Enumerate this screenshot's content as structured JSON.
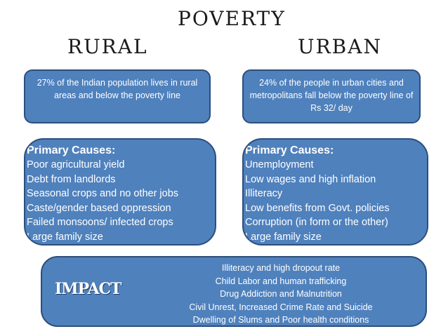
{
  "title": "Poverty",
  "columns": {
    "rural": {
      "heading": "Rural",
      "stat": "27% of the Indian population lives in rural areas and below the poverty line",
      "causes_title": "Primary Causes:",
      "causes": [
        "Poor agricultural yield",
        "Debt from landlords",
        "Seasonal crops and no other jobs",
        "Caste/gender based oppression",
        "Failed monsoons/ infected crops",
        "Large family size"
      ]
    },
    "urban": {
      "heading": "Urban",
      "stat": "24% of the people in urban cities and metropolitans fall below the poverty line of Rs 32/ day",
      "causes_title": "Primary Causes:",
      "causes": [
        "Unemployment",
        "Low wages and high inflation",
        "Illiteracy",
        "Low benefits from Govt. policies",
        "Corruption (in form or the other)",
        "Large family size"
      ]
    }
  },
  "impact": {
    "label": "IMPACT",
    "items": [
      "Illiteracy and high dropout rate",
      "Child Labor and human trafficking",
      "Drug Addiction and Malnutrition",
      "Civil Unrest, Increased Crime Rate and Suicide",
      "Dwelling of Slums and Poor health conditions"
    ]
  },
  "colors": {
    "box_fill": "#4f81bd",
    "box_border": "#2c4f7c",
    "text_on_box": "#ffffff",
    "heading_text": "#1a1a1a"
  }
}
